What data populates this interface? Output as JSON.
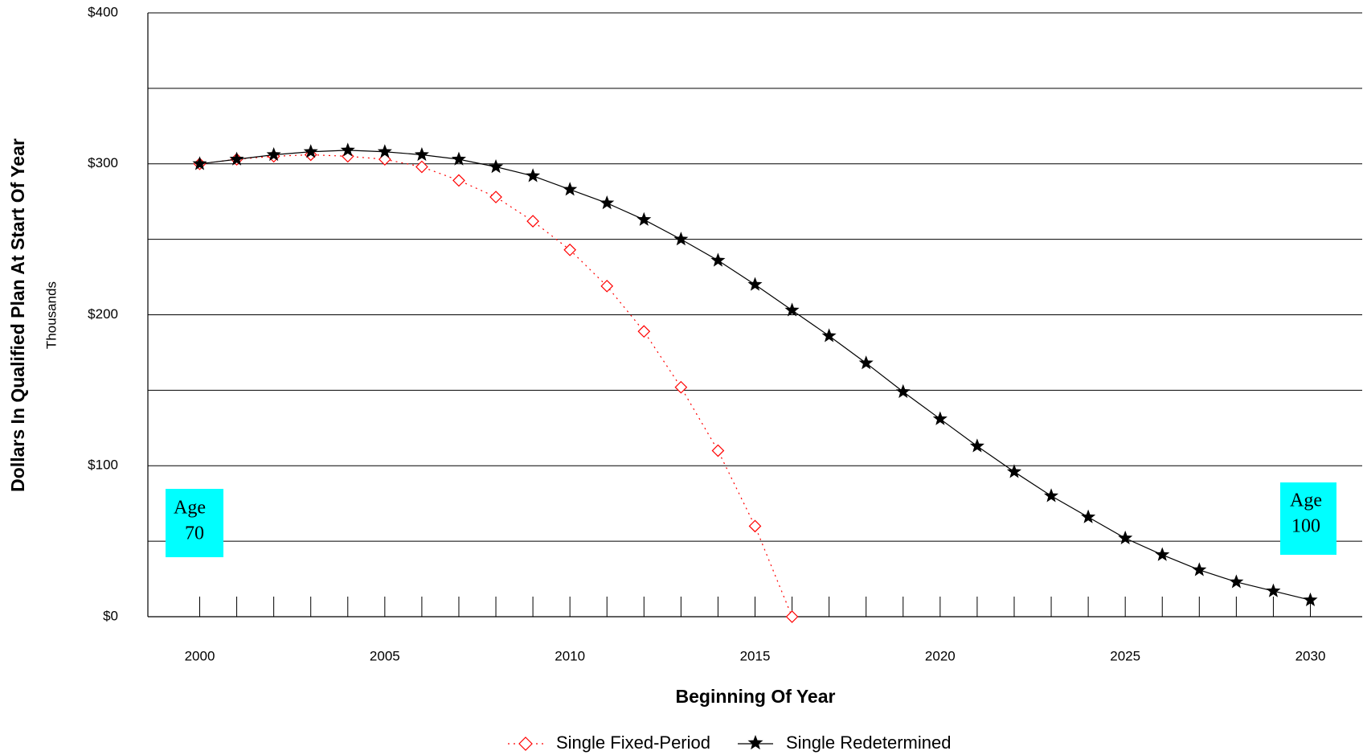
{
  "chart_data": {
    "type": "line",
    "x": [
      2000,
      2001,
      2002,
      2003,
      2004,
      2005,
      2006,
      2007,
      2008,
      2009,
      2010,
      2011,
      2012,
      2013,
      2014,
      2015,
      2016,
      2017,
      2018,
      2019,
      2020,
      2021,
      2022,
      2023,
      2024,
      2025,
      2026,
      2027,
      2028,
      2029,
      2030
    ],
    "series": [
      {
        "name": "Single Fixed-Period",
        "color": "#ff0000",
        "marker": "diamond",
        "line_style": "dotted",
        "values": [
          300,
          303,
          305,
          306,
          305,
          303,
          298,
          289,
          278,
          262,
          243,
          219,
          189,
          152,
          110,
          60,
          0,
          null,
          null,
          null,
          null,
          null,
          null,
          null,
          null,
          null,
          null,
          null,
          null,
          null,
          null
        ]
      },
      {
        "name": "Single Redetermined",
        "color": "#000000",
        "marker": "star",
        "line_style": "solid",
        "values": [
          300,
          303,
          306,
          308,
          309,
          308,
          306,
          303,
          298,
          292,
          283,
          274,
          263,
          250,
          236,
          220,
          203,
          186,
          168,
          149,
          131,
          113,
          96,
          80,
          66,
          52,
          41,
          31,
          23,
          17,
          11
        ]
      }
    ],
    "xlabel": "Beginning Of Year",
    "ylabel": "Dollars In Qualified Plan At Start Of Year",
    "yunits": "Thousands",
    "xlim": [
      1998.6,
      2031.4
    ],
    "xticks": [
      2000,
      2005,
      2010,
      2015,
      2020,
      2025,
      2030
    ],
    "ylim": [
      0,
      400
    ],
    "yticks": [
      {
        "value": 0,
        "label": "$0"
      },
      {
        "value": 100,
        "label": "$100"
      },
      {
        "value": 200,
        "label": "$200"
      },
      {
        "value": 300,
        "label": "$300"
      },
      {
        "value": 400,
        "label": "$400"
      }
    ],
    "minor_gridlines": [
      50,
      150,
      250,
      350
    ],
    "grid": true,
    "legend": "bottom",
    "annotations": [
      {
        "lines": [
          "Age",
          "70"
        ]
      },
      {
        "lines": [
          "Age",
          "100"
        ]
      }
    ]
  }
}
